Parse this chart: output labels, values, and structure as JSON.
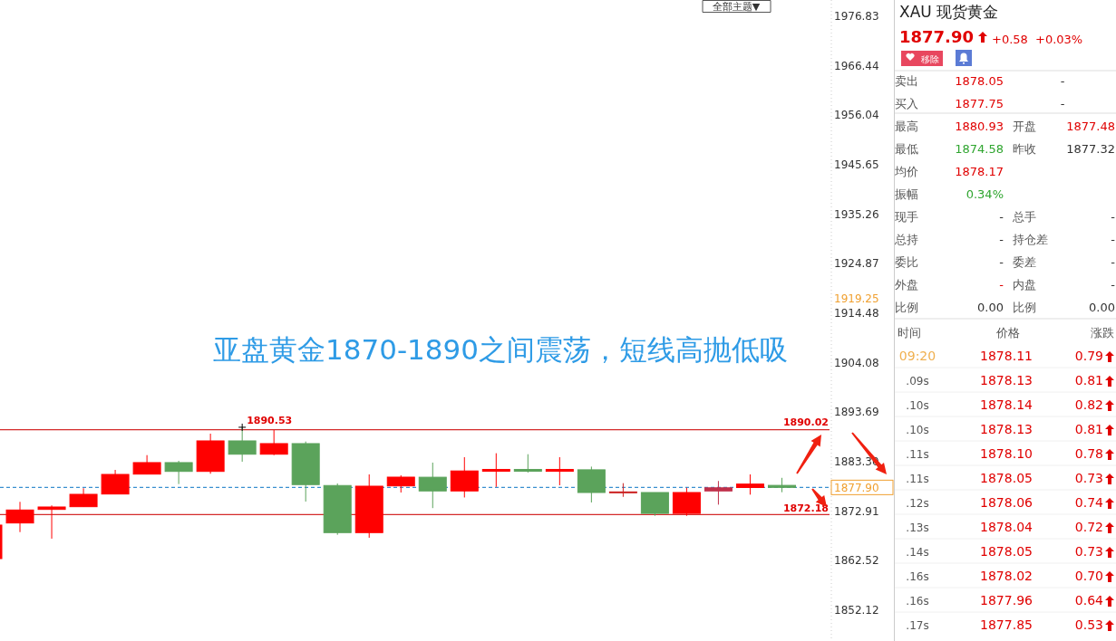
{
  "chart_data": [
    {
      "type": "candlestick",
      "title": "亚盘黄金1870-1890之间震荡，短线高抛低吸",
      "categories": [
        null,
        null,
        null,
        null,
        null,
        null,
        null,
        null,
        null,
        null,
        null,
        null,
        null,
        null,
        null,
        null,
        null,
        null,
        null,
        null,
        null,
        null,
        null,
        null,
        null,
        null
      ],
      "ohlc": [
        [
          1862.95,
          1869.99,
          1862.95,
          1869.99
        ],
        [
          1870.43,
          1874.87,
          1868.52,
          1873.16
        ],
        [
          1873.28,
          1874.12,
          1867.14,
          1873.79
        ],
        [
          1873.85,
          1877.73,
          1873.85,
          1876.45
        ],
        [
          1876.51,
          1881.58,
          1876.51,
          1880.63
        ],
        [
          1880.69,
          1884.68,
          1880.69,
          1883.11
        ],
        [
          1883.11,
          1883.49,
          1878.6,
          1881.26
        ],
        [
          1881.26,
          1889.19,
          1880.77,
          1887.67
        ],
        [
          1887.67,
          1890.53,
          1883.3,
          1884.87
        ],
        [
          1884.87,
          1889.95,
          1884.68,
          1887.1
        ],
        [
          1887.1,
          1887.54,
          1874.93,
          1878.49
        ],
        [
          1878.3,
          1878.73,
          1867.95,
          1868.41
        ],
        [
          1868.41,
          1880.63,
          1867.33,
          1878.16
        ],
        [
          1878.22,
          1880.44,
          1876.83,
          1880.06
        ],
        [
          1880.04,
          1883.11,
          1873.56,
          1877.16
        ],
        [
          1877.16,
          1884.25,
          1875.79,
          1881.36
        ],
        [
          1881.3,
          1885.08,
          1878.01,
          1881.68
        ],
        [
          1881.68,
          1884.87,
          1881.01,
          1881.3
        ],
        [
          1881.28,
          1884.25,
          1878.35,
          1881.68
        ],
        [
          1881.6,
          1882.27,
          1874.74,
          1876.83
        ],
        [
          1876.96,
          1878.79,
          1875.92,
          1876.96
        ],
        [
          1876.83,
          1876.83,
          1871.93,
          1872.44
        ],
        [
          1872.44,
          1877.82,
          1871.93,
          1876.83
        ],
        [
          1877.16,
          1879.25,
          1874.28,
          1877.82
        ],
        [
          1877.88,
          1880.63,
          1876.38,
          1878.6
        ],
        [
          1878.33,
          1879.91,
          1876.89,
          1877.9
        ]
      ],
      "colors": [
        "#ff0000",
        "#ff0000",
        "#ff0000",
        "#ff0000",
        "#ff0000",
        "#ff0000",
        "#5ba35b",
        "#ff0000",
        "#5ba35b",
        "#ff0000",
        "#5ba35b",
        "#5ba35b",
        "#ff0000",
        "#ff0000",
        "#5ba35b",
        "#ff0000",
        "#ff0000",
        "#5ba35b",
        "#ff0000",
        "#5ba35b",
        "#cc2222",
        "#5ba35b",
        "#ff0000",
        "#c0304a",
        "#ff0000",
        "#5ba35b"
      ],
      "ylim": [
        1845.65,
        1980.25
      ],
      "yticks": [
        1852.12,
        1862.52,
        1872.91,
        {
          "value": 1883.3,
          "label": "1883.30"
        },
        1893.69,
        1904.08,
        1914.48,
        1924.87,
        1935.26,
        1945.65,
        1956.04,
        1966.44,
        1976.83
      ],
      "ref_lines": [
        {
          "axis": "y",
          "value": 1890.02,
          "label": "1890.02",
          "color": "#d42a2a",
          "line_style": "solid"
        },
        {
          "axis": "y",
          "value": 1872.18,
          "label": "1872.18",
          "color": "#d42a2a",
          "line_style": "solid"
        },
        {
          "axis": "y",
          "value": 1877.9,
          "label": "1877.90",
          "color": "#3a8fd0",
          "line_style": "dashed"
        }
      ],
      "annotations": [
        "全部主题▼",
        {
          "text": "1890.53",
          "y": 1890.53
        },
        "1919.25"
      ]
    },
    {
      "type": "other",
      "title": "XAU 现货黄金",
      "annotations": [
        "1877.90",
        "+0.58",
        "+0.03%",
        "移除",
        "卖出",
        "1878.05",
        "-",
        "买入",
        "1877.75",
        "-",
        "最高",
        "1880.93",
        "开盘",
        "1877.48",
        "最低",
        "1874.58",
        "昨收",
        "1877.32",
        "均价",
        "1878.17",
        "振幅",
        "0.34%",
        "现手",
        "-",
        "总手",
        "-",
        "总持",
        "-",
        "持仓差",
        "-",
        "委比",
        "-",
        "委差",
        "-",
        "外盘",
        "-",
        "内盘",
        "-",
        "比例",
        "0.00",
        "比例",
        "0.00",
        "时间",
        "价格",
        "涨跌",
        "09:20",
        "1878.11",
        "0.79",
        ".09s",
        "1878.13",
        "0.81",
        ".10s",
        "1878.14",
        "0.82",
        ".10s",
        "1878.13",
        "0.81",
        ".11s",
        "1878.10",
        "0.78",
        ".11s",
        "1878.05",
        "0.73",
        ".12s",
        "1878.06",
        "0.74",
        ".13s",
        "1878.04",
        "0.72",
        ".14s",
        "1878.05",
        "0.73",
        ".16s",
        "1878.02",
        "0.70",
        ".16s",
        "1877.96",
        "0.64",
        ".17s",
        "1877.85",
        "0.53"
      ]
    }
  ]
}
